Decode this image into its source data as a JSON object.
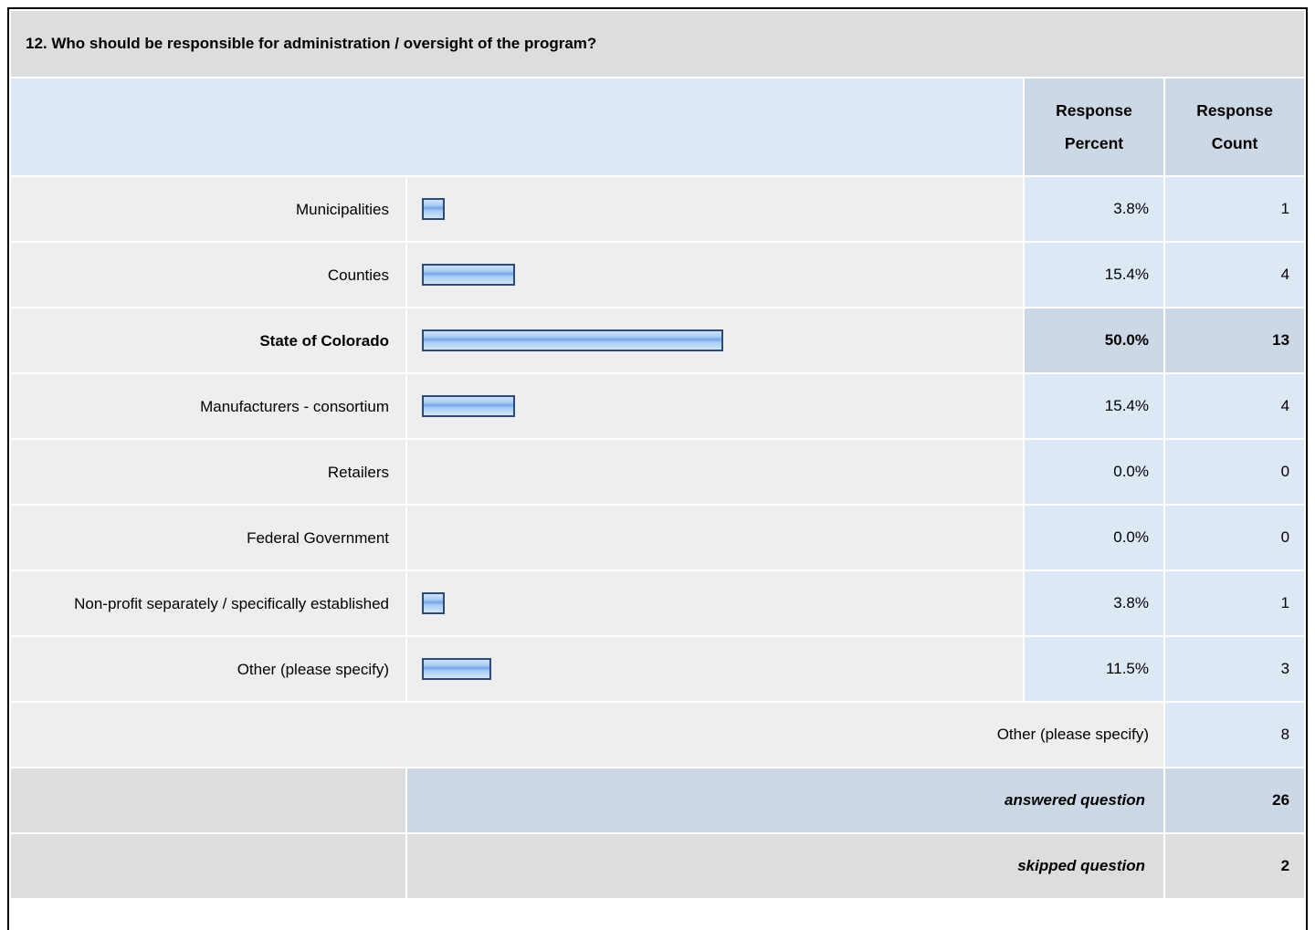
{
  "title": "12. Who should be responsible for administration / oversight of the program?",
  "headers": {
    "percent": "Response Percent",
    "count": "Response Count"
  },
  "rows": [
    {
      "label": "Municipalities",
      "percent": 3.8,
      "percent_label": "3.8%",
      "count": 1
    },
    {
      "label": "Counties",
      "percent": 15.4,
      "percent_label": "15.4%",
      "count": 4
    },
    {
      "label": "State of Colorado",
      "percent": 50.0,
      "percent_label": "50.0%",
      "count": 13,
      "bold": true
    },
    {
      "label": "Manufacturers - consortium",
      "percent": 15.4,
      "percent_label": "15.4%",
      "count": 4
    },
    {
      "label": "Retailers",
      "percent": 0.0,
      "percent_label": "0.0%",
      "count": 0
    },
    {
      "label": "Federal Government",
      "percent": 0.0,
      "percent_label": "0.0%",
      "count": 0
    },
    {
      "label": "Non-profit separately / specifically established",
      "percent": 3.8,
      "percent_label": "3.8%",
      "count": 1
    },
    {
      "label": "Other (please specify)",
      "percent": 11.5,
      "percent_label": "11.5%",
      "count": 3
    }
  ],
  "other_row": {
    "label": "Other (please specify)",
    "count": 8
  },
  "answered": {
    "label": "answered question",
    "count": 26
  },
  "skipped": {
    "label": "skipped question",
    "count": 2
  }
}
